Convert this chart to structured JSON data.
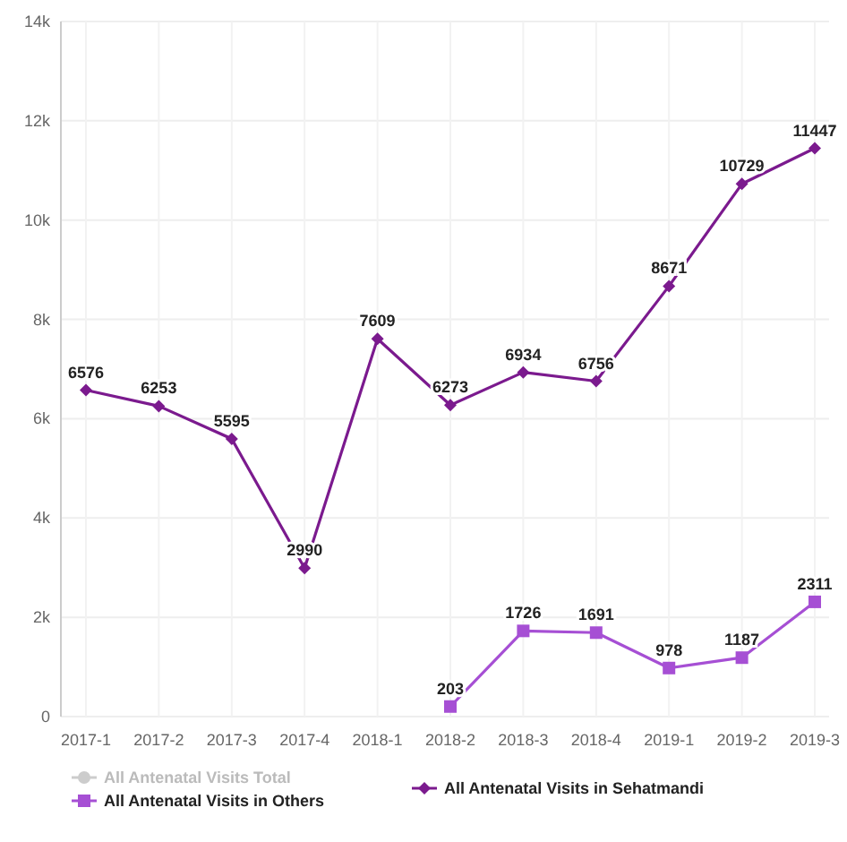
{
  "chart_data": {
    "type": "line",
    "categories": [
      "2017-1",
      "2017-2",
      "2017-3",
      "2017-4",
      "2018-1",
      "2018-2",
      "2018-3",
      "2018-4",
      "2019-1",
      "2019-2",
      "2019-3"
    ],
    "series": [
      {
        "name": "All Antenatal Visits Total",
        "color": "#cccccc",
        "marker": "circle",
        "values": [
          null,
          null,
          null,
          null,
          null,
          null,
          null,
          null,
          null,
          null,
          null
        ]
      },
      {
        "name": "All Antenatal Visits in Sehatmandi",
        "color": "#7b1a8e",
        "marker": "diamond",
        "values": [
          6576,
          6253,
          5595,
          2990,
          7609,
          6273,
          6934,
          6756,
          8671,
          10729,
          11447
        ]
      },
      {
        "name": "All Antenatal Visits in Others",
        "color": "#a64fd4",
        "marker": "square",
        "values": [
          null,
          null,
          null,
          null,
          null,
          203,
          1726,
          1691,
          978,
          1187,
          2311
        ]
      }
    ],
    "ylim": [
      0,
      14000
    ],
    "yticks": [
      0,
      {
        "value": 2000,
        "label": "2k"
      },
      {
        "value": 4000,
        "label": "4k"
      },
      {
        "value": 6000,
        "label": "6k"
      },
      {
        "value": 8000,
        "label": "8k"
      },
      {
        "value": 10000,
        "label": "10k"
      },
      {
        "value": 12000,
        "label": "12k"
      },
      {
        "value": 14000,
        "label": "14k"
      }
    ],
    "grid": true,
    "legend": "bottom",
    "data_labels": true
  }
}
